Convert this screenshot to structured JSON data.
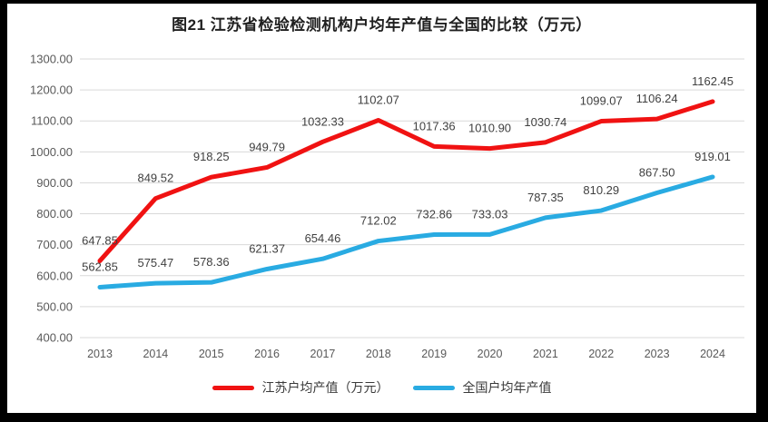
{
  "title": "图21  江苏省检验检测机构户均年产值与全国的比较（万元）",
  "chart_data": {
    "type": "line",
    "title": "图21  江苏省检验检测机构户均年产值与全国的比较（万元）",
    "x": [
      "2013",
      "2014",
      "2015",
      "2016",
      "2017",
      "2018",
      "2019",
      "2020",
      "2021",
      "2022",
      "2023",
      "2024"
    ],
    "series": [
      {
        "name": "江苏户均产值（万元）",
        "color": "#f01212",
        "values": [
          647.85,
          849.52,
          918.25,
          949.79,
          1032.33,
          1102.07,
          1017.36,
          1010.9,
          1030.74,
          1099.07,
          1106.24,
          1162.45
        ]
      },
      {
        "name": "全国户均年产值",
        "color": "#29abe2",
        "values": [
          562.85,
          575.47,
          578.36,
          621.37,
          654.46,
          712.02,
          732.86,
          733.03,
          787.35,
          810.29,
          867.5,
          919.01
        ]
      }
    ],
    "ylim": [
      400,
      1300
    ],
    "ytick_step": 100,
    "ytick_format_decimals": 2,
    "grid": "horizontal-only",
    "gridline_color": "#d9d9d9",
    "axis_label_color": "#595959",
    "data_label_color": "#404040",
    "legend_position": "bottom",
    "value_labels": true,
    "frame_color": "#000000"
  }
}
